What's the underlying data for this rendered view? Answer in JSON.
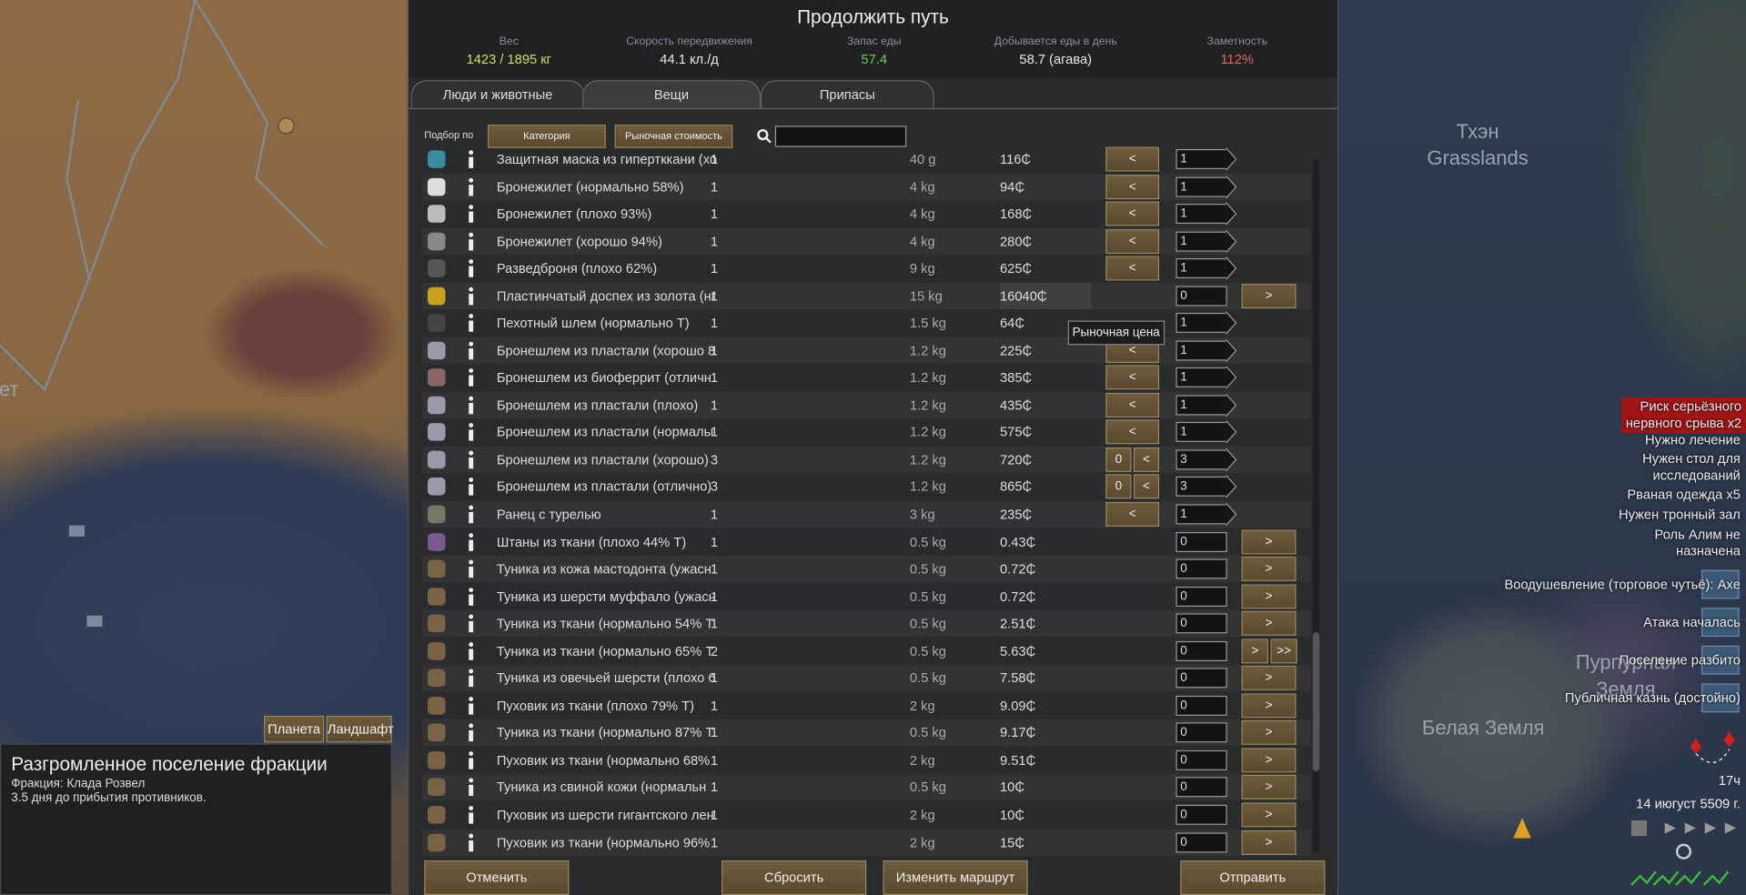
{
  "header": {
    "title": "Продолжить путь",
    "stats": [
      {
        "label": "Вес",
        "value": "1423 / 1895 кг"
      },
      {
        "label": "Скорость передвижения",
        "value": "44.1 кл./д"
      },
      {
        "label": "Запас еды",
        "value": "57.4"
      },
      {
        "label": "Добывается еды в день",
        "value": "58.7 (агава)"
      },
      {
        "label": "Заметность",
        "value": "112%"
      }
    ]
  },
  "tabs": [
    "Люди и животные",
    "Вещи",
    "Припасы"
  ],
  "filter": {
    "label": "Подбор по",
    "buttons": [
      "Категория",
      "Рыночная стоимость"
    ]
  },
  "items": [
    {
      "name": "Защитная маска из гипертккани (хо",
      "count": "1",
      "mass": "40 g",
      "price": "116₵",
      "left": [
        "<"
      ],
      "transfer": "1",
      "right": []
    },
    {
      "name": "Бронежилет (нормально 58%)",
      "count": "1",
      "mass": "4 kg",
      "price": "94₵",
      "left": [
        "<"
      ],
      "transfer": "1",
      "right": []
    },
    {
      "name": "Бронежилет (плохо 93%)",
      "count": "1",
      "mass": "4 kg",
      "price": "168₵",
      "left": [
        "<"
      ],
      "transfer": "1",
      "right": []
    },
    {
      "name": "Бронежилет (хорошо 94%)",
      "count": "1",
      "mass": "4 kg",
      "price": "280₵",
      "left": [
        "<"
      ],
      "transfer": "1",
      "right": []
    },
    {
      "name": "Разведброня (плохо 62%)",
      "count": "1",
      "mass": "9 kg",
      "price": "625₵",
      "left": [
        "<"
      ],
      "transfer": "1",
      "right": []
    },
    {
      "name": "Пластинчатый доспех из золота (нг",
      "count": "1",
      "mass": "15 kg",
      "price": "16040₵",
      "left": [],
      "transfer": "0",
      "right": [
        ">"
      ]
    },
    {
      "name": "Пехотный шлем (нормально Т)",
      "count": "1",
      "mass": "1.5 kg",
      "price": "64₵",
      "left": [],
      "transfer": "1",
      "right": []
    },
    {
      "name": "Бронешлем из пластали (хорошо 8",
      "count": "1",
      "mass": "1.2 kg",
      "price": "225₵",
      "left": [
        "<"
      ],
      "transfer": "1",
      "right": []
    },
    {
      "name": "Бронешлем из биоферрит (отличн",
      "count": "1",
      "mass": "1.2 kg",
      "price": "385₵",
      "left": [
        "<"
      ],
      "transfer": "1",
      "right": []
    },
    {
      "name": "Бронешлем из пластали (плохо)",
      "count": "1",
      "mass": "1.2 kg",
      "price": "435₵",
      "left": [
        "<"
      ],
      "transfer": "1",
      "right": []
    },
    {
      "name": "Бронешлем из пластали (нормалы",
      "count": "1",
      "mass": "1.2 kg",
      "price": "575₵",
      "left": [
        "<"
      ],
      "transfer": "1",
      "right": []
    },
    {
      "name": "Бронешлем из пластали (хорошо)",
      "count": "3",
      "mass": "1.2 kg",
      "price": "720₵",
      "left": [
        "0",
        "<"
      ],
      "transfer": "3",
      "right": []
    },
    {
      "name": "Бронешлем из пластали (отлично)",
      "count": "3",
      "mass": "1.2 kg",
      "price": "865₵",
      "left": [
        "0",
        "<"
      ],
      "transfer": "3",
      "right": []
    },
    {
      "name": "Ранец с турелью",
      "count": "1",
      "mass": "3 kg",
      "price": "235₵",
      "left": [
        "<"
      ],
      "transfer": "1",
      "right": []
    },
    {
      "name": "Штаны из ткани (плохо 44% Т)",
      "count": "1",
      "mass": "0.5 kg",
      "price": "0.43₵",
      "left": [],
      "transfer": "0",
      "right": [
        ">"
      ]
    },
    {
      "name": "Туника из кожа мастодонта (ужасн",
      "count": "1",
      "mass": "0.5 kg",
      "price": "0.72₵",
      "left": [],
      "transfer": "0",
      "right": [
        ">"
      ]
    },
    {
      "name": "Туника из шерсти муффало (ужасн",
      "count": "1",
      "mass": "0.5 kg",
      "price": "0.72₵",
      "left": [],
      "transfer": "0",
      "right": [
        ">"
      ]
    },
    {
      "name": "Туника из ткани (нормально 54% Т",
      "count": "1",
      "mass": "0.5 kg",
      "price": "2.51₵",
      "left": [],
      "transfer": "0",
      "right": [
        ">"
      ]
    },
    {
      "name": "Туника из ткани (нормально 65% Т",
      "count": "2",
      "mass": "0.5 kg",
      "price": "5.63₵",
      "left": [],
      "transfer": "0",
      "right": [
        ">",
        ">>"
      ]
    },
    {
      "name": "Туника из овечьей шерсти (плохо 6",
      "count": "1",
      "mass": "0.5 kg",
      "price": "7.58₵",
      "left": [],
      "transfer": "0",
      "right": [
        ">"
      ]
    },
    {
      "name": "Пуховик из ткани (плохо 79% Т)",
      "count": "1",
      "mass": "2 kg",
      "price": "9.09₵",
      "left": [],
      "transfer": "0",
      "right": [
        ">"
      ]
    },
    {
      "name": "Туника из ткани (нормально 87% Т",
      "count": "1",
      "mass": "0.5 kg",
      "price": "9.17₵",
      "left": [],
      "transfer": "0",
      "right": [
        ">"
      ]
    },
    {
      "name": "Пуховик из ткани (нормально 68%",
      "count": "1",
      "mass": "2 kg",
      "price": "9.51₵",
      "left": [],
      "transfer": "0",
      "right": [
        ">"
      ]
    },
    {
      "name": "Туника из свиной кожи (нормальн",
      "count": "1",
      "mass": "0.5 kg",
      "price": "10₵",
      "left": [],
      "transfer": "0",
      "right": [
        ">"
      ]
    },
    {
      "name": "Пуховик из шерсти гигантского лен",
      "count": "1",
      "mass": "2 kg",
      "price": "10₵",
      "left": [],
      "transfer": "0",
      "right": [
        ">"
      ]
    },
    {
      "name": "Пуховик из ткани (нормально 96%",
      "count": "1",
      "mass": "2 kg",
      "price": "15₵",
      "left": [],
      "transfer": "0",
      "right": [
        ">"
      ]
    }
  ],
  "tooltip": "Рыночная цена",
  "footer_buttons": [
    "Отменить",
    "Сбросить",
    "Изменить маршрут",
    "Отправить"
  ],
  "map_labels": [
    [
      "Тхэн",
      "Grasslands"
    ],
    [
      "Пурпурная",
      "Земля"
    ],
    [
      "Белая Земля"
    ],
    [
      "ет"
    ]
  ],
  "map_buttons": [
    "Планета",
    "Ландшафт"
  ],
  "selection": {
    "title": "Разгромленное поселение фракции",
    "lines": [
      "Фракция: Клада Розвел",
      "3.5 дня до прибытия противников."
    ]
  },
  "alerts": [
    [
      "Риск серьёзного",
      "нервного срыва x2"
    ],
    [
      "Нужно лечение"
    ],
    [
      "Нужен стол для",
      "исследований"
    ],
    [
      "Рваная одежда x5"
    ],
    [
      "Нужен тронный зал"
    ],
    [
      "Роль Алим не",
      "назначена"
    ],
    [
      "Воодушевление (торговое чутьё): Axe"
    ],
    [
      "Атака началась"
    ],
    [
      "Поселение разбито"
    ],
    [
      "Публичная казнь (достойно)"
    ]
  ],
  "clock": {
    "time": "17ч",
    "date": "14 июгуст 5509 г."
  }
}
